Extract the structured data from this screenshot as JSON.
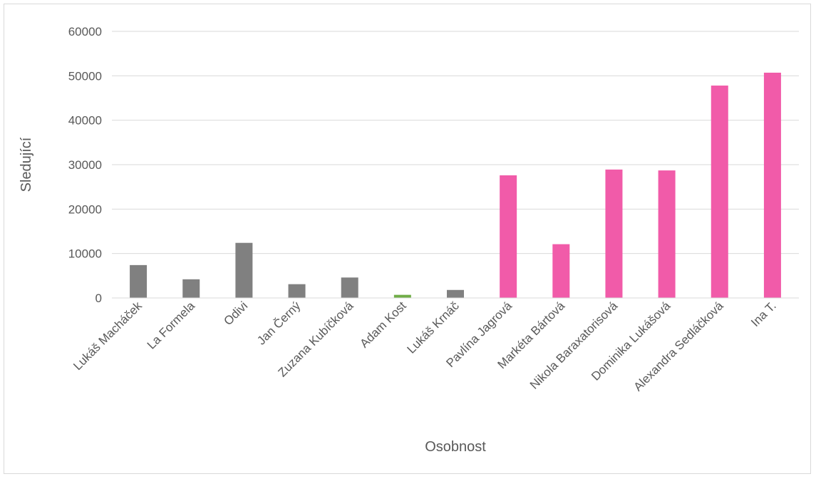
{
  "chart_data": {
    "type": "bar",
    "title": "",
    "xlabel": "Osobnost",
    "ylabel": "Sledující",
    "ylim": [
      0,
      60000
    ],
    "yticks": [
      0,
      10000,
      20000,
      30000,
      40000,
      50000,
      60000
    ],
    "ytick_labels": [
      "0",
      "10000",
      "20000",
      "30000",
      "40000",
      "50000",
      "60000"
    ],
    "grid": true,
    "categories": [
      "Lukáš Macháček",
      "La Formela",
      "Odivi",
      "Jan Černý",
      "Zuzana Kubíčková",
      "Adam Kost",
      "Lukáš Krnáč",
      "Pavlína Jagrová",
      "Markéta Bártová",
      "Nikola Baraxatorisová",
      "Dominika Lukášová",
      "Alexandra Sedláčková",
      "Ina T."
    ],
    "values": [
      7400,
      4200,
      12400,
      3100,
      4600,
      700,
      1800,
      27600,
      12100,
      28900,
      28700,
      47800,
      50700
    ],
    "colors": [
      "#808080",
      "#808080",
      "#808080",
      "#808080",
      "#808080",
      "#70ad47",
      "#808080",
      "#f15ba9",
      "#f15ba9",
      "#f15ba9",
      "#f15ba9",
      "#f15ba9",
      "#f15ba9"
    ]
  }
}
